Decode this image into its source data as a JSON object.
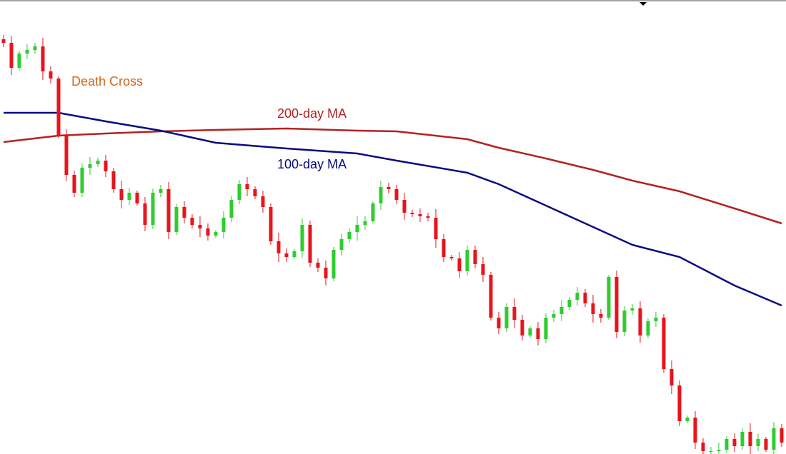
{
  "chart_data": {
    "type": "candlestick",
    "annotations": [
      "Death Cross"
    ],
    "up_color": "#2fcc2f",
    "down_color": "#e8141c",
    "ylim": [
      0,
      636
    ],
    "xlim": [
      -0.45,
      99.55
    ],
    "open": [
      581,
      576,
      541,
      561,
      566,
      571,
      536,
      526,
      446,
      391,
      366,
      401,
      406,
      411,
      396,
      371,
      356,
      366,
      351,
      321,
      366,
      371,
      311,
      346,
      331,
      321,
      316,
      306,
      311,
      331,
      356,
      378,
      371,
      361,
      346,
      298,
      281,
      276,
      284,
      321,
      268,
      261,
      246,
      286,
      301,
      311,
      321,
      326,
      351,
      374,
      371,
      356,
      338,
      336,
      333,
      331,
      301,
      276,
      274,
      256,
      286,
      266,
      251,
      191,
      176,
      206,
      188,
      166,
      176,
      161,
      191,
      196,
      206,
      216,
      226,
      211,
      196,
      191,
      248,
      171,
      201,
      204,
      166,
      186,
      191,
      119,
      96,
      46,
      51,
      16,
      4,
      4,
      6,
      21,
      11,
      31,
      11,
      21,
      6,
      36
    ],
    "high": [
      587,
      586,
      565,
      574,
      576,
      583,
      543,
      529,
      455,
      397,
      407,
      416,
      415,
      419,
      401,
      383,
      373,
      369,
      360,
      372,
      377,
      381,
      350,
      354,
      336,
      333,
      323,
      314,
      340,
      362,
      384,
      388,
      375,
      369,
      351,
      310,
      288,
      287,
      330,
      327,
      274,
      271,
      290,
      309,
      316,
      333,
      333,
      354,
      383,
      380,
      377,
      366,
      342,
      344,
      338,
      343,
      308,
      279,
      283,
      292,
      292,
      276,
      255,
      199,
      211,
      218,
      195,
      179,
      185,
      197,
      202,
      216,
      220,
      234,
      231,
      223,
      203,
      251,
      257,
      207,
      210,
      214,
      190,
      199,
      196,
      131,
      103,
      54,
      60,
      22,
      10,
      16,
      25,
      29,
      36,
      43,
      28,
      24,
      45,
      42
    ],
    "low": [
      570,
      531,
      537,
      553,
      561,
      524,
      519,
      443,
      382,
      360,
      360,
      391,
      402,
      388,
      366,
      344,
      349,
      348,
      312,
      315,
      360,
      301,
      307,
      323,
      316,
      304,
      299,
      303,
      302,
      325,
      350,
      361,
      357,
      338,
      293,
      269,
      269,
      273,
      275,
      262,
      255,
      236,
      242,
      278,
      296,
      299,
      314,
      323,
      342,
      365,
      350,
      328,
      332,
      325,
      326,
      289,
      269,
      271,
      247,
      250,
      260,
      241,
      187,
      168,
      171,
      176,
      159,
      163,
      152,
      155,
      185,
      186,
      202,
      208,
      206,
      184,
      184,
      188,
      162,
      165,
      195,
      156,
      162,
      178,
      114,
      84,
      39,
      43,
      7,
      -2,
      -2,
      -6,
      2,
      3,
      6,
      -1,
      4,
      3,
      -3,
      10
    ],
    "close": [
      576,
      541,
      561,
      566,
      571,
      536,
      526,
      446,
      391,
      366,
      401,
      406,
      411,
      396,
      371,
      356,
      366,
      351,
      321,
      366,
      371,
      311,
      346,
      331,
      321,
      316,
      306,
      311,
      331,
      356,
      378,
      371,
      361,
      346,
      298,
      281,
      276,
      284,
      321,
      268,
      261,
      246,
      286,
      301,
      311,
      321,
      326,
      351,
      374,
      371,
      356,
      338,
      336,
      333,
      331,
      301,
      276,
      274,
      256,
      286,
      266,
      251,
      191,
      176,
      206,
      188,
      166,
      176,
      161,
      191,
      196,
      206,
      216,
      226,
      211,
      196,
      191,
      248,
      171,
      201,
      204,
      166,
      186,
      191,
      119,
      96,
      46,
      51,
      16,
      4,
      4,
      6,
      21,
      11,
      31,
      11,
      21,
      6,
      36,
      16
    ],
    "series": [
      {
        "name": "200-day MA",
        "color": "#b22222",
        "x": [
          0,
          7,
          13,
          20,
          27,
          36,
          45,
          50,
          59,
          63,
          69,
          75,
          80,
          86,
          93,
          99
        ],
        "values": [
          437,
          446,
          449,
          452,
          454,
          456,
          453,
          452,
          441,
          429,
          414,
          398,
          383,
          368,
          344,
          323
        ]
      },
      {
        "name": "100-day MA",
        "color": "#0a0a80",
        "x": [
          0,
          7,
          13,
          20,
          27,
          36,
          45,
          50,
          59,
          63,
          69,
          75,
          80,
          86,
          93,
          99
        ],
        "values": [
          478,
          478,
          466,
          453,
          436,
          428,
          421,
          411,
          394,
          378,
          348,
          318,
          293,
          276,
          236,
          208
        ]
      }
    ]
  }
}
